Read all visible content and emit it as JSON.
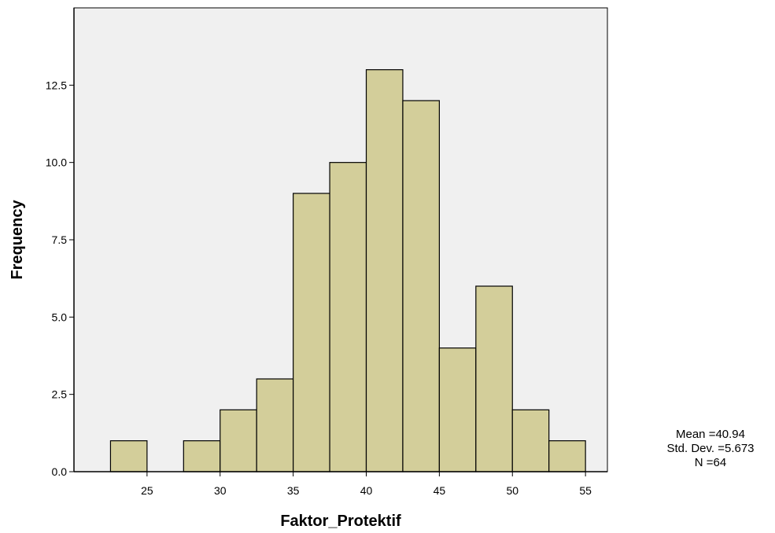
{
  "chart_data": {
    "type": "bar",
    "subtype": "histogram",
    "xlabel": "Faktor_Protektif",
    "ylabel": "Frequency",
    "xlim": [
      20,
      56.5
    ],
    "ylim": [
      0,
      15
    ],
    "bin_width": 2.5,
    "bins": [
      {
        "start": 22.5,
        "end": 25.0,
        "count": 1
      },
      {
        "start": 25.0,
        "end": 27.5,
        "count": 0
      },
      {
        "start": 27.5,
        "end": 30.0,
        "count": 1
      },
      {
        "start": 30.0,
        "end": 32.5,
        "count": 2
      },
      {
        "start": 32.5,
        "end": 35.0,
        "count": 3
      },
      {
        "start": 35.0,
        "end": 37.5,
        "count": 9
      },
      {
        "start": 37.5,
        "end": 40.0,
        "count": 10
      },
      {
        "start": 40.0,
        "end": 42.5,
        "count": 13
      },
      {
        "start": 42.5,
        "end": 45.0,
        "count": 12
      },
      {
        "start": 45.0,
        "end": 47.5,
        "count": 4
      },
      {
        "start": 47.5,
        "end": 50.0,
        "count": 6
      },
      {
        "start": 50.0,
        "end": 52.5,
        "count": 2
      },
      {
        "start": 52.5,
        "end": 55.0,
        "count": 1
      }
    ],
    "x_ticks": [
      {
        "value": 25,
        "label": "25"
      },
      {
        "value": 30,
        "label": "30"
      },
      {
        "value": 35,
        "label": "35"
      },
      {
        "value": 40,
        "label": "40"
      },
      {
        "value": 45,
        "label": "45"
      },
      {
        "value": 50,
        "label": "50"
      },
      {
        "value": 55,
        "label": "55"
      }
    ],
    "y_ticks": [
      {
        "value": 0,
        "label": "0.0"
      },
      {
        "value": 2.5,
        "label": "2.5"
      },
      {
        "value": 5,
        "label": "5.0"
      },
      {
        "value": 7.5,
        "label": "7.5"
      },
      {
        "value": 10,
        "label": "10.0"
      },
      {
        "value": 12.5,
        "label": "12.5"
      }
    ],
    "statistics": [
      "Mean =40.94",
      "Std. Dev. =5.673",
      "N =64"
    ],
    "colors": {
      "bar_fill": "#d3ce9a",
      "bar_stroke": "#000000",
      "plot_background": "#f0f0f0"
    },
    "grid": false,
    "legend": "none"
  }
}
